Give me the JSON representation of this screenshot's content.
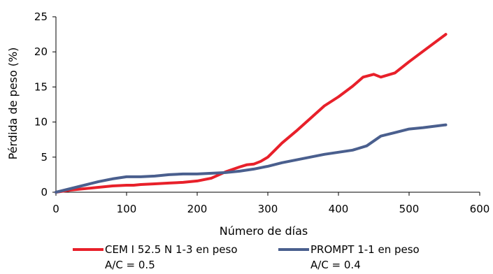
{
  "chart_data": {
    "type": "line",
    "title": "",
    "xlabel": "Número de días",
    "ylabel": "Pérdida de peso (%)",
    "xlim": [
      0,
      600
    ],
    "ylim": [
      0,
      25
    ],
    "xticks": [
      "0",
      "100",
      "200",
      "300",
      "400",
      "500",
      "600"
    ],
    "yticks": [
      "0",
      "5",
      "10",
      "15",
      "20",
      "25"
    ],
    "grid": false,
    "legend_position": "bottom",
    "series": [
      {
        "name": "CEM I 52.5 N 1-3 en peso",
        "sublabel": "A/C = 0.5",
        "color": "#e8202a",
        "x": [
          0,
          20,
          40,
          60,
          80,
          100,
          110,
          120,
          140,
          160,
          180,
          200,
          220,
          240,
          260,
          270,
          280,
          290,
          300,
          310,
          320,
          340,
          360,
          380,
          400,
          420,
          435,
          450,
          460,
          470,
          480,
          500,
          520,
          552
        ],
        "y": [
          0,
          0.3,
          0.5,
          0.7,
          0.9,
          1.0,
          1.0,
          1.1,
          1.2,
          1.3,
          1.4,
          1.6,
          2.0,
          2.9,
          3.6,
          3.9,
          4.0,
          4.4,
          5.0,
          6.0,
          7.0,
          8.7,
          10.5,
          12.3,
          13.6,
          15.1,
          16.4,
          16.8,
          16.4,
          16.7,
          17.0,
          18.6,
          20.1,
          22.5
        ]
      },
      {
        "name": "PROMPT 1-1 en peso",
        "sublabel": "A/C = 0.4",
        "color": "#4a5f8e",
        "x": [
          0,
          20,
          40,
          60,
          80,
          100,
          120,
          140,
          160,
          180,
          200,
          220,
          240,
          260,
          280,
          300,
          320,
          340,
          360,
          380,
          400,
          420,
          440,
          460,
          480,
          500,
          520,
          552
        ],
        "y": [
          0,
          0.5,
          1.0,
          1.5,
          1.9,
          2.2,
          2.2,
          2.3,
          2.5,
          2.6,
          2.6,
          2.7,
          2.8,
          3.0,
          3.3,
          3.7,
          4.2,
          4.6,
          5.0,
          5.4,
          5.7,
          6.0,
          6.6,
          8.0,
          8.5,
          9.0,
          9.2,
          9.6
        ]
      }
    ]
  }
}
